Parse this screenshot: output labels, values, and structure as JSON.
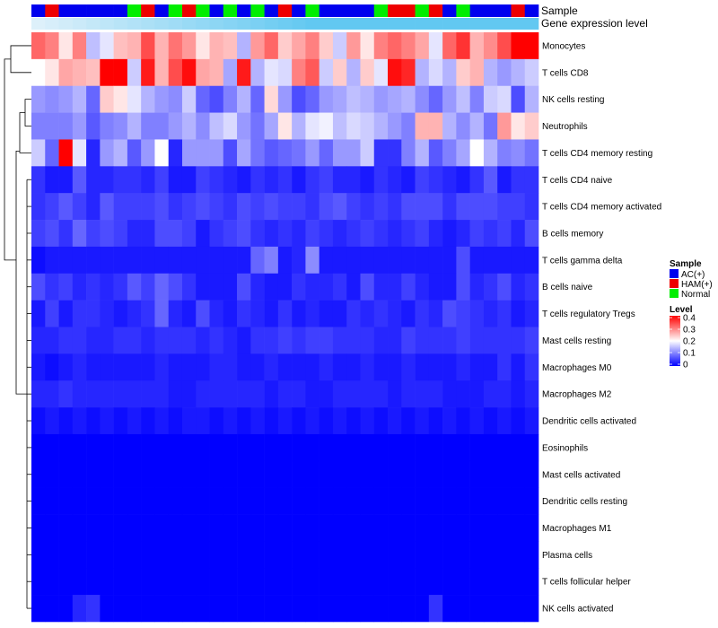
{
  "chart_data": {
    "type": "heatmap",
    "annotation_labels": [
      "Sample",
      "Gene expression level"
    ],
    "rows": [
      "Monocytes",
      "T cells CD8",
      "NK cells resting",
      "Neutrophils",
      "T cells CD4 memory resting",
      "T cells CD4 naive",
      "T cells CD4 memory activated",
      "B cells memory",
      "T cells gamma delta",
      "B cells naive",
      "T cells regulatory  Tregs",
      "Mast cells resting",
      "Macrophages M0",
      "Macrophages M2",
      "Dendritic cells activated",
      "Eosinophils",
      "Mast cells activated",
      "Dendritic cells resting",
      "Macrophages M1",
      "Plasma cells",
      "T cells follicular helper",
      "NK cells activated"
    ],
    "sample_groups": [
      "AC(+)",
      "HAM(+)",
      "AC(+)",
      "AC(+)",
      "AC(+)",
      "AC(+)",
      "AC(+)",
      "Normal",
      "HAM(+)",
      "AC(+)",
      "Normal",
      "HAM(+)",
      "Normal",
      "AC(+)",
      "Normal",
      "AC(+)",
      "Normal",
      "AC(+)",
      "HAM(+)",
      "AC(+)",
      "Normal",
      "AC(+)",
      "AC(+)",
      "AC(+)",
      "AC(+)",
      "Normal",
      "HAM(+)",
      "HAM(+)",
      "Normal",
      "HAM(+)",
      "AC(+)",
      "Normal",
      "AC(+)",
      "AC(+)",
      "AC(+)",
      "HAM(+)",
      "AC(+)"
    ],
    "gene_expression_level": [
      0.0,
      0.05,
      0.1,
      0.15,
      0.2,
      0.25,
      0.3,
      0.35,
      0.4,
      0.45,
      0.5,
      0.55,
      0.6,
      0.65,
      0.7,
      0.75,
      0.8,
      0.85,
      0.9,
      0.95,
      1.0,
      1.0,
      1.0,
      1.0,
      1.0,
      1.0,
      1.0,
      1.0,
      1.0,
      1.0,
      1.0,
      1.0,
      1.0,
      1.0,
      1.0,
      1.0,
      1.0
    ],
    "values": [
      [
        0.32,
        0.3,
        0.22,
        0.3,
        0.15,
        0.18,
        0.25,
        0.26,
        0.34,
        0.26,
        0.31,
        0.28,
        0.22,
        0.26,
        0.25,
        0.14,
        0.28,
        0.32,
        0.24,
        0.27,
        0.3,
        0.24,
        0.16,
        0.28,
        0.22,
        0.3,
        0.32,
        0.3,
        0.27,
        0.18,
        0.32,
        0.36,
        0.26,
        0.29,
        0.34,
        0.4,
        0.4
      ],
      [
        0.2,
        0.22,
        0.27,
        0.26,
        0.25,
        0.4,
        0.4,
        0.16,
        0.38,
        0.26,
        0.34,
        0.39,
        0.27,
        0.26,
        0.13,
        0.38,
        0.14,
        0.18,
        0.17,
        0.3,
        0.33,
        0.16,
        0.24,
        0.14,
        0.24,
        0.18,
        0.39,
        0.37,
        0.14,
        0.17,
        0.14,
        0.24,
        0.26,
        0.14,
        0.12,
        0.14,
        0.16
      ],
      [
        0.12,
        0.11,
        0.12,
        0.14,
        0.08,
        0.24,
        0.22,
        0.18,
        0.14,
        0.12,
        0.11,
        0.16,
        0.08,
        0.06,
        0.1,
        0.14,
        0.08,
        0.23,
        0.12,
        0.06,
        0.08,
        0.12,
        0.13,
        0.15,
        0.14,
        0.12,
        0.13,
        0.14,
        0.11,
        0.08,
        0.12,
        0.15,
        0.1,
        0.16,
        0.17,
        0.06,
        0.14
      ],
      [
        0.1,
        0.1,
        0.1,
        0.12,
        0.07,
        0.1,
        0.11,
        0.14,
        0.1,
        0.1,
        0.12,
        0.14,
        0.11,
        0.15,
        0.17,
        0.12,
        0.09,
        0.13,
        0.22,
        0.14,
        0.18,
        0.19,
        0.15,
        0.17,
        0.16,
        0.14,
        0.12,
        0.1,
        0.26,
        0.26,
        0.14,
        0.11,
        0.14,
        0.09,
        0.28,
        0.22,
        0.24
      ],
      [
        0.16,
        0.08,
        0.4,
        0.18,
        0.03,
        0.12,
        0.14,
        0.07,
        0.12,
        0.2,
        0.03,
        0.12,
        0.12,
        0.12,
        0.06,
        0.13,
        0.09,
        0.07,
        0.08,
        0.09,
        0.12,
        0.08,
        0.12,
        0.12,
        0.16,
        0.04,
        0.04,
        0.1,
        0.14,
        0.07,
        0.1,
        0.13,
        0.2,
        0.14,
        0.1,
        0.11,
        0.09
      ],
      [
        0.04,
        0.02,
        0.02,
        0.07,
        0.03,
        0.03,
        0.04,
        0.04,
        0.03,
        0.05,
        0.02,
        0.02,
        0.05,
        0.04,
        0.03,
        0.02,
        0.04,
        0.03,
        0.04,
        0.02,
        0.04,
        0.05,
        0.03,
        0.03,
        0.02,
        0.04,
        0.03,
        0.02,
        0.05,
        0.04,
        0.03,
        0.02,
        0.04,
        0.07,
        0.02,
        0.04,
        0.04
      ],
      [
        0.04,
        0.05,
        0.07,
        0.05,
        0.03,
        0.07,
        0.05,
        0.05,
        0.05,
        0.06,
        0.04,
        0.05,
        0.06,
        0.05,
        0.04,
        0.06,
        0.05,
        0.06,
        0.05,
        0.05,
        0.04,
        0.06,
        0.07,
        0.05,
        0.04,
        0.05,
        0.04,
        0.06,
        0.06,
        0.06,
        0.04,
        0.06,
        0.06,
        0.06,
        0.05,
        0.05,
        0.04
      ],
      [
        0.05,
        0.06,
        0.04,
        0.08,
        0.05,
        0.06,
        0.05,
        0.03,
        0.03,
        0.06,
        0.06,
        0.05,
        0.02,
        0.04,
        0.05,
        0.06,
        0.04,
        0.03,
        0.04,
        0.03,
        0.05,
        0.04,
        0.03,
        0.04,
        0.05,
        0.04,
        0.03,
        0.04,
        0.05,
        0.03,
        0.02,
        0.03,
        0.05,
        0.04,
        0.05,
        0.03,
        0.06
      ],
      [
        0.01,
        0.02,
        0.02,
        0.02,
        0.02,
        0.02,
        0.02,
        0.02,
        0.02,
        0.02,
        0.02,
        0.02,
        0.02,
        0.02,
        0.02,
        0.02,
        0.08,
        0.1,
        0.02,
        0.03,
        0.11,
        0.02,
        0.02,
        0.02,
        0.02,
        0.02,
        0.02,
        0.02,
        0.02,
        0.02,
        0.02,
        0.06,
        0.02,
        0.02,
        0.02,
        0.02,
        0.02
      ],
      [
        0.06,
        0.04,
        0.05,
        0.03,
        0.04,
        0.03,
        0.04,
        0.07,
        0.05,
        0.08,
        0.06,
        0.04,
        0.02,
        0.02,
        0.02,
        0.06,
        0.03,
        0.02,
        0.02,
        0.04,
        0.03,
        0.03,
        0.04,
        0.02,
        0.06,
        0.03,
        0.03,
        0.05,
        0.03,
        0.02,
        0.02,
        0.06,
        0.03,
        0.04,
        0.06,
        0.03,
        0.04
      ],
      [
        0.02,
        0.05,
        0.02,
        0.04,
        0.04,
        0.03,
        0.02,
        0.03,
        0.04,
        0.08,
        0.03,
        0.02,
        0.06,
        0.03,
        0.02,
        0.04,
        0.03,
        0.02,
        0.04,
        0.02,
        0.03,
        0.02,
        0.02,
        0.04,
        0.03,
        0.04,
        0.03,
        0.02,
        0.04,
        0.03,
        0.06,
        0.05,
        0.04,
        0.03,
        0.04,
        0.02,
        0.03
      ],
      [
        0.03,
        0.03,
        0.04,
        0.04,
        0.03,
        0.03,
        0.04,
        0.04,
        0.03,
        0.04,
        0.04,
        0.04,
        0.03,
        0.04,
        0.03,
        0.02,
        0.04,
        0.04,
        0.05,
        0.04,
        0.05,
        0.05,
        0.04,
        0.04,
        0.04,
        0.03,
        0.03,
        0.05,
        0.04,
        0.04,
        0.04,
        0.05,
        0.04,
        0.04,
        0.04,
        0.04,
        0.05
      ],
      [
        0.02,
        0.01,
        0.02,
        0.03,
        0.02,
        0.02,
        0.02,
        0.02,
        0.02,
        0.03,
        0.02,
        0.02,
        0.02,
        0.03,
        0.03,
        0.02,
        0.02,
        0.03,
        0.02,
        0.02,
        0.02,
        0.03,
        0.02,
        0.02,
        0.03,
        0.02,
        0.02,
        0.03,
        0.02,
        0.02,
        0.02,
        0.03,
        0.02,
        0.02,
        0.04,
        0.02,
        0.04
      ],
      [
        0.03,
        0.03,
        0.04,
        0.03,
        0.03,
        0.03,
        0.03,
        0.03,
        0.03,
        0.03,
        0.02,
        0.02,
        0.03,
        0.03,
        0.03,
        0.03,
        0.03,
        0.02,
        0.03,
        0.03,
        0.02,
        0.02,
        0.03,
        0.03,
        0.03,
        0.03,
        0.02,
        0.03,
        0.03,
        0.03,
        0.02,
        0.02,
        0.02,
        0.03,
        0.03,
        0.02,
        0.03
      ],
      [
        0.01,
        0.02,
        0.01,
        0.02,
        0.01,
        0.02,
        0.01,
        0.02,
        0.01,
        0.02,
        0.01,
        0.02,
        0.02,
        0.01,
        0.02,
        0.01,
        0.02,
        0.01,
        0.02,
        0.01,
        0.02,
        0.01,
        0.02,
        0.01,
        0.02,
        0.01,
        0.02,
        0.01,
        0.02,
        0.01,
        0.02,
        0.01,
        0.02,
        0.01,
        0.02,
        0.01,
        0.02
      ],
      [
        0,
        0,
        0,
        0,
        0,
        0,
        0,
        0,
        0,
        0,
        0,
        0,
        0,
        0,
        0,
        0,
        0,
        0,
        0,
        0,
        0,
        0,
        0,
        0,
        0,
        0,
        0,
        0,
        0,
        0,
        0,
        0,
        0,
        0,
        0,
        0,
        0
      ],
      [
        0,
        0,
        0,
        0,
        0,
        0,
        0,
        0,
        0,
        0,
        0,
        0,
        0,
        0,
        0,
        0,
        0,
        0,
        0,
        0,
        0,
        0,
        0,
        0,
        0,
        0,
        0,
        0,
        0,
        0,
        0,
        0,
        0,
        0,
        0,
        0,
        0
      ],
      [
        0,
        0,
        0,
        0,
        0,
        0,
        0,
        0,
        0,
        0,
        0,
        0,
        0,
        0,
        0,
        0,
        0,
        0,
        0,
        0,
        0,
        0,
        0,
        0,
        0,
        0,
        0,
        0,
        0,
        0,
        0,
        0,
        0,
        0,
        0,
        0,
        0
      ],
      [
        0,
        0,
        0,
        0,
        0,
        0,
        0,
        0,
        0,
        0,
        0,
        0,
        0,
        0,
        0,
        0,
        0,
        0,
        0,
        0,
        0,
        0,
        0,
        0,
        0,
        0,
        0,
        0,
        0,
        0,
        0,
        0,
        0,
        0,
        0,
        0,
        0
      ],
      [
        0,
        0,
        0,
        0,
        0,
        0,
        0,
        0,
        0,
        0,
        0,
        0,
        0,
        0,
        0,
        0,
        0,
        0,
        0,
        0,
        0,
        0,
        0,
        0,
        0,
        0,
        0,
        0,
        0,
        0,
        0,
        0,
        0,
        0,
        0,
        0,
        0
      ],
      [
        0,
        0,
        0,
        0,
        0,
        0,
        0,
        0,
        0,
        0,
        0,
        0,
        0,
        0,
        0,
        0,
        0,
        0,
        0,
        0,
        0,
        0,
        0,
        0,
        0,
        0,
        0,
        0,
        0,
        0,
        0,
        0,
        0,
        0,
        0,
        0,
        0
      ],
      [
        0,
        0,
        0,
        0.03,
        0.04,
        0,
        0,
        0,
        0,
        0,
        0,
        0,
        0,
        0,
        0,
        0,
        0,
        0,
        0,
        0,
        0,
        0,
        0,
        0,
        0,
        0,
        0,
        0,
        0,
        0.04,
        0,
        0,
        0,
        0,
        0,
        0,
        0
      ]
    ],
    "legend": {
      "sample": {
        "title": "Sample",
        "entries": [
          {
            "label": "AC(+)",
            "color": "#0000ee"
          },
          {
            "label": "HAM(+)",
            "color": "#ee0000"
          },
          {
            "label": "Normal",
            "color": "#00ee00"
          }
        ]
      },
      "level": {
        "title": "Level",
        "ticks": [
          "0.4",
          "0.3",
          "0.2",
          "0.1",
          "0"
        ],
        "range": [
          0,
          0.4
        ]
      }
    },
    "colors": {
      "low": "#0000ff",
      "mid": "#ffffff",
      "high": "#ff0000",
      "gene_low": "#ddf0fa",
      "gene_high": "#62c8f1"
    }
  }
}
